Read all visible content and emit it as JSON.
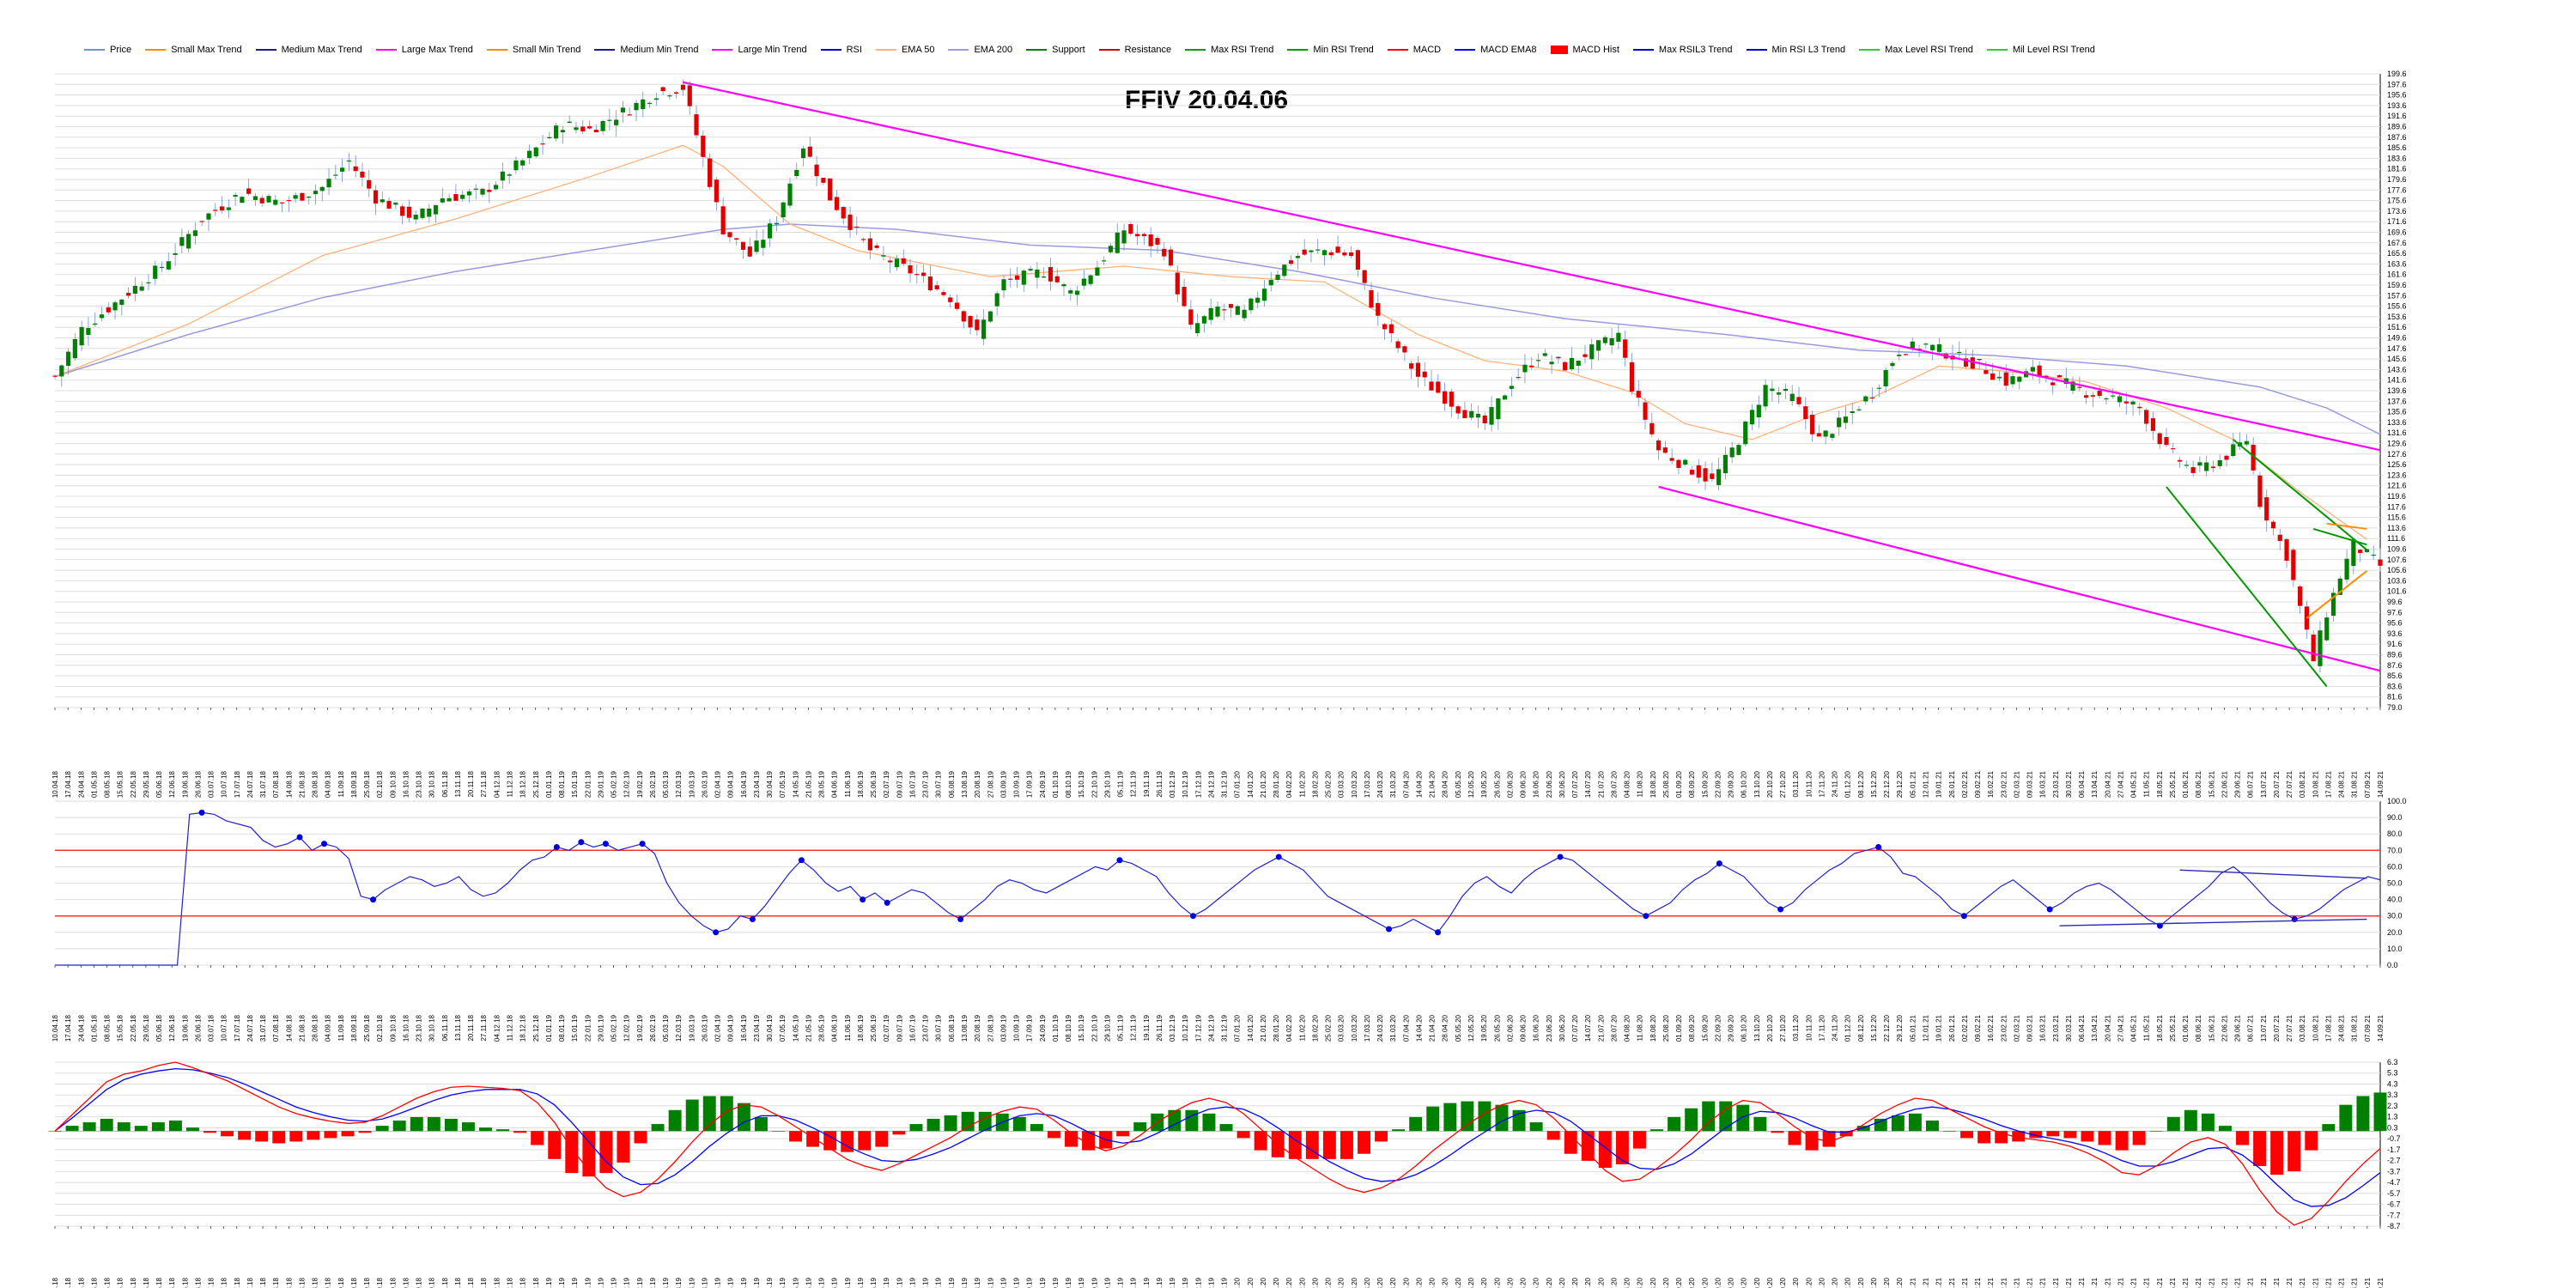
{
  "legend": [
    {
      "label": "Price",
      "color": "#6f8fd6",
      "kind": "line"
    },
    {
      "label": "Small Max Trend",
      "color": "#ff8c00",
      "kind": "line"
    },
    {
      "label": "Medium Max Trend",
      "color": "#1b1b99",
      "kind": "line"
    },
    {
      "label": "Large Max Trend",
      "color": "#ff00ff",
      "kind": "line"
    },
    {
      "label": "Small Min Trend",
      "color": "#ff8c00",
      "kind": "line"
    },
    {
      "label": "Medium Min Trend",
      "color": "#1b1b99",
      "kind": "line"
    },
    {
      "label": "Large Min Trend",
      "color": "#ff00ff",
      "kind": "line"
    },
    {
      "label": "RSI",
      "color": "#0000cc",
      "kind": "line"
    },
    {
      "label": "EMA 50",
      "color": "#ffb27a",
      "kind": "line"
    },
    {
      "label": "EMA 200",
      "color": "#9a9ae0",
      "kind": "line"
    },
    {
      "label": "Support",
      "color": "#008000",
      "kind": "line"
    },
    {
      "label": "Resistance",
      "color": "#cc0000",
      "kind": "line"
    },
    {
      "label": "Max RSI Trend",
      "color": "#009900",
      "kind": "line"
    },
    {
      "label": "Min RSI Trend",
      "color": "#009900",
      "kind": "line"
    },
    {
      "label": "MACD",
      "color": "#ff0000",
      "kind": "line"
    },
    {
      "label": "MACD EMA8",
      "color": "#0000ff",
      "kind": "line"
    },
    {
      "label": "MACD Hist",
      "color": "#ff0000",
      "kind": "bar"
    },
    {
      "label": "Max RSIL3 Trend",
      "color": "#0000cc",
      "kind": "line"
    },
    {
      "label": "Min RSI L3 Trend",
      "color": "#0000cc",
      "kind": "line"
    },
    {
      "label": "Max Level RSI Trend",
      "color": "#33cc33",
      "kind": "line"
    },
    {
      "label": "Mil Level RSI Trend",
      "color": "#33cc33",
      "kind": "line"
    }
  ],
  "title": "FFIV 20.04.06",
  "colors": {
    "up": "#008000",
    "down": "#e00000",
    "ema50": "#ffb27a",
    "ema200": "#9a9ae0",
    "large_trend": "#ff00ff",
    "support": "#009900",
    "small_trend": "#ff8c00",
    "rsi": "#2222cc",
    "rsi_level": "#ff3333",
    "macd": "#ff0000",
    "signal": "#0000ff",
    "hist_pos": "#008000",
    "hist_neg": "#ff0000",
    "grid": "#dddddd"
  },
  "chart_data": [
    {
      "type": "candlestick",
      "title": "FFIV 20.04.06",
      "ylim": [
        79.0,
        199.6
      ],
      "grid": true,
      "y_tick_labels": [
        "199.6",
        "197.6",
        "195.6",
        "193.6",
        "191.6",
        "189.6",
        "187.6",
        "185.6",
        "183.6",
        "181.6",
        "179.6",
        "177.6",
        "175.6",
        "173.6",
        "171.6",
        "169.6",
        "167.6",
        "165.6",
        "163.6",
        "161.6",
        "159.6",
        "157.6",
        "155.6",
        "153.6",
        "151.6",
        "149.6",
        "147.6",
        "145.6",
        "143.6",
        "141.6",
        "139.6",
        "137.6",
        "135.6",
        "133.6",
        "131.6",
        "129.6",
        "127.6",
        "125.6",
        "123.6",
        "121.6",
        "119.6",
        "117.6",
        "115.6",
        "113.6",
        "111.6",
        "109.6",
        "107.6",
        "105.6",
        "103.6",
        "101.6",
        "99.6",
        "97.6",
        "95.6",
        "93.6",
        "91.6",
        "89.6",
        "87.6",
        "85.6",
        "83.6",
        "81.6",
        "79.0"
      ],
      "price_path": [
        [
          0,
          142
        ],
        [
          4,
          151
        ],
        [
          10,
          157
        ],
        [
          16,
          163
        ],
        [
          22,
          172
        ],
        [
          28,
          177
        ],
        [
          34,
          175
        ],
        [
          40,
          178
        ],
        [
          44,
          183
        ],
        [
          48,
          176
        ],
        [
          54,
          172
        ],
        [
          58,
          176
        ],
        [
          64,
          177
        ],
        [
          70,
          183
        ],
        [
          76,
          190
        ],
        [
          80,
          189
        ],
        [
          86,
          193
        ],
        [
          90,
          196
        ],
        [
          94,
          197
        ],
        [
          96,
          188
        ],
        [
          100,
          170
        ],
        [
          104,
          165
        ],
        [
          108,
          172
        ],
        [
          112,
          186
        ],
        [
          116,
          176
        ],
        [
          122,
          166
        ],
        [
          128,
          162
        ],
        [
          134,
          157
        ],
        [
          138,
          150
        ],
        [
          142,
          160
        ],
        [
          148,
          162
        ],
        [
          152,
          158
        ],
        [
          156,
          163
        ],
        [
          160,
          170
        ],
        [
          166,
          166
        ],
        [
          170,
          151
        ],
        [
          174,
          155
        ],
        [
          178,
          154
        ],
        [
          182,
          161
        ],
        [
          186,
          165
        ],
        [
          190,
          166
        ],
        [
          194,
          165
        ],
        [
          198,
          153
        ],
        [
          204,
          142
        ],
        [
          210,
          136
        ],
        [
          214,
          133
        ],
        [
          218,
          141
        ],
        [
          222,
          146
        ],
        [
          226,
          144
        ],
        [
          230,
          147
        ],
        [
          234,
          150
        ],
        [
          236,
          140
        ],
        [
          240,
          128
        ],
        [
          244,
          125
        ],
        [
          248,
          122
        ],
        [
          252,
          130
        ],
        [
          256,
          140
        ],
        [
          260,
          138
        ],
        [
          264,
          130
        ],
        [
          268,
          134
        ],
        [
          272,
          139
        ],
        [
          276,
          147
        ],
        [
          280,
          148
        ],
        [
          284,
          146
        ],
        [
          288,
          144
        ],
        [
          292,
          141
        ],
        [
          296,
          143
        ],
        [
          300,
          141
        ],
        [
          304,
          139
        ],
        [
          308,
          138
        ],
        [
          312,
          136
        ],
        [
          316,
          128
        ],
        [
          320,
          124
        ],
        [
          324,
          126
        ],
        [
          328,
          130
        ],
        [
          330,
          118
        ],
        [
          334,
          108
        ],
        [
          336,
          98
        ],
        [
          338,
          88
        ],
        [
          340,
          97
        ],
        [
          342,
          104
        ],
        [
          344,
          110
        ],
        [
          346,
          108
        ],
        [
          348,
          106
        ]
      ],
      "ema50_path": [
        [
          0,
          142
        ],
        [
          20,
          152
        ],
        [
          40,
          165
        ],
        [
          60,
          172
        ],
        [
          80,
          180
        ],
        [
          94,
          186
        ],
        [
          100,
          182
        ],
        [
          110,
          171
        ],
        [
          120,
          166
        ],
        [
          140,
          161
        ],
        [
          160,
          163
        ],
        [
          176,
          161
        ],
        [
          190,
          160
        ],
        [
          204,
          150
        ],
        [
          214,
          145
        ],
        [
          226,
          143
        ],
        [
          236,
          139
        ],
        [
          244,
          133
        ],
        [
          254,
          130
        ],
        [
          264,
          135
        ],
        [
          272,
          138
        ],
        [
          282,
          144
        ],
        [
          292,
          143
        ],
        [
          304,
          141
        ],
        [
          316,
          136
        ],
        [
          326,
          130
        ],
        [
          336,
          120
        ],
        [
          346,
          111
        ]
      ],
      "ema200_path": [
        [
          0,
          142
        ],
        [
          20,
          150
        ],
        [
          40,
          157
        ],
        [
          60,
          162
        ],
        [
          80,
          166
        ],
        [
          100,
          170
        ],
        [
          110,
          171
        ],
        [
          126,
          170
        ],
        [
          146,
          167
        ],
        [
          166,
          166
        ],
        [
          186,
          162
        ],
        [
          206,
          157
        ],
        [
          226,
          153
        ],
        [
          250,
          150
        ],
        [
          270,
          147
        ],
        [
          290,
          146
        ],
        [
          310,
          144
        ],
        [
          330,
          140
        ],
        [
          340,
          136
        ],
        [
          348,
          131
        ]
      ],
      "large_max_trend": [
        [
          94,
          198
        ],
        [
          348,
          128
        ]
      ],
      "large_min_trend": [
        [
          240,
          121
        ],
        [
          348,
          86
        ]
      ],
      "support_lines": [
        [
          [
            316,
            121
          ],
          [
            340,
            83
          ]
        ],
        [
          [
            326,
            130
          ],
          [
            346,
            109
          ]
        ],
        [
          [
            338,
            113
          ],
          [
            346,
            110
          ]
        ]
      ],
      "small_trend_lines": [
        [
          [
            337,
            96
          ],
          [
            346,
            105
          ]
        ],
        [
          [
            340,
            114
          ],
          [
            346,
            113
          ]
        ]
      ]
    },
    {
      "type": "line",
      "title": "RSI",
      "ylim": [
        0,
        100
      ],
      "y_tick_labels": [
        "100.0",
        "90.0",
        "80.0",
        "70.0",
        "60.0",
        "50.0",
        "40.0",
        "30.0",
        "20.0",
        "10.0",
        "0.0"
      ],
      "levels": [
        70,
        30
      ],
      "values": [
        0,
        0,
        0,
        0,
        0,
        0,
        0,
        0,
        0,
        0,
        0,
        92,
        93,
        92,
        88,
        86,
        84,
        76,
        72,
        74,
        78,
        70,
        74,
        72,
        65,
        42,
        40,
        46,
        50,
        54,
        52,
        48,
        50,
        54,
        46,
        42,
        44,
        50,
        58,
        64,
        66,
        72,
        70,
        75,
        72,
        74,
        70,
        72,
        74,
        68,
        50,
        38,
        30,
        24,
        20,
        22,
        30,
        28,
        36,
        46,
        56,
        64,
        58,
        50,
        45,
        48,
        40,
        44,
        38,
        42,
        46,
        44,
        38,
        32,
        28,
        34,
        40,
        48,
        52,
        50,
        46,
        44,
        48,
        52,
        56,
        60,
        58,
        64,
        62,
        58,
        54,
        44,
        36,
        30,
        34,
        40,
        46,
        52,
        58,
        62,
        66,
        62,
        58,
        50,
        42,
        38,
        34,
        30,
        26,
        22,
        24,
        28,
        24,
        20,
        30,
        42,
        50,
        54,
        48,
        44,
        52,
        58,
        62,
        66,
        64,
        58,
        52,
        46,
        40,
        34,
        30,
        34,
        38,
        46,
        52,
        56,
        62,
        58,
        54,
        46,
        38,
        34,
        38,
        46,
        52,
        58,
        62,
        68,
        70,
        72,
        66,
        56,
        54,
        48,
        42,
        34,
        30,
        36,
        42,
        48,
        52,
        46,
        40,
        34,
        38,
        44,
        48,
        50,
        46,
        40,
        34,
        28,
        24,
        30,
        36,
        42,
        48,
        56,
        60,
        54,
        46,
        38,
        32,
        28,
        30,
        34,
        40,
        46,
        50,
        54,
        52
      ],
      "max_rsi_trend": [
        [
          318,
          58
        ],
        [
          346,
          53
        ]
      ],
      "min_rsi_trend": [
        [
          300,
          24
        ],
        [
          346,
          28
        ]
      ]
    },
    {
      "type": "line",
      "title": "MACD",
      "ylim": [
        -8.7,
        6.3
      ],
      "y_tick_labels": [
        "6.3",
        "5.3",
        "4.3",
        "3.3",
        "2.3",
        "1.3",
        "0.3",
        "-0.7",
        "-1.7",
        "-2.7",
        "-3.7",
        "-4.7",
        "-5.7",
        "-6.7",
        "-7.7",
        "-8.7"
      ],
      "macd": [
        0,
        1.5,
        3.0,
        4.5,
        5.2,
        5.5,
        6.0,
        6.3,
        5.8,
        5.2,
        4.6,
        3.8,
        3.0,
        2.2,
        1.6,
        1.2,
        0.9,
        0.7,
        0.8,
        1.4,
        2.2,
        3.0,
        3.6,
        4.0,
        4.1,
        4.0,
        3.9,
        3.7,
        2.6,
        0.8,
        -1.6,
        -3.6,
        -5.2,
        -6.0,
        -5.6,
        -4.4,
        -2.8,
        -1.0,
        0.6,
        1.8,
        2.4,
        2.2,
        1.4,
        0.4,
        -0.6,
        -1.6,
        -2.6,
        -3.2,
        -3.6,
        -3.0,
        -2.2,
        -1.4,
        -0.6,
        0.4,
        1.2,
        1.8,
        2.2,
        2.0,
        1.0,
        -0.2,
        -1.2,
        -1.8,
        -1.4,
        -0.4,
        0.8,
        1.8,
        2.6,
        3.0,
        2.6,
        1.6,
        0.2,
        -1.2,
        -2.4,
        -3.4,
        -4.4,
        -5.2,
        -5.6,
        -5.2,
        -4.4,
        -3.2,
        -1.8,
        -0.6,
        0.6,
        1.6,
        2.4,
        2.8,
        2.4,
        1.2,
        -0.4,
        -2.0,
        -3.6,
        -4.6,
        -4.4,
        -3.4,
        -2.2,
        -0.8,
        0.8,
        2.0,
        2.8,
        2.6,
        1.6,
        0.4,
        -0.6,
        -1.0,
        -0.4,
        0.6,
        1.6,
        2.4,
        3.0,
        2.8,
        2.0,
        1.2,
        0.4,
        -0.2,
        -0.6,
        -0.8,
        -1.0,
        -1.4,
        -2.0,
        -2.8,
        -3.8,
        -4.0,
        -3.2,
        -2.0,
        -1.0,
        -0.6,
        -1.2,
        -3.0,
        -5.4,
        -7.4,
        -8.6,
        -8.0,
        -6.4,
        -4.6,
        -3.0,
        -1.6
      ],
      "signal": [
        0,
        1.2,
        2.5,
        3.8,
        4.7,
        5.2,
        5.5,
        5.7,
        5.6,
        5.3,
        4.9,
        4.3,
        3.6,
        2.9,
        2.2,
        1.7,
        1.3,
        1.0,
        0.9,
        1.1,
        1.6,
        2.2,
        2.8,
        3.3,
        3.6,
        3.8,
        3.8,
        3.8,
        3.4,
        2.4,
        0.8,
        -1.0,
        -2.8,
        -4.2,
        -4.9,
        -4.8,
        -4.0,
        -2.8,
        -1.4,
        -0.2,
        0.8,
        1.4,
        1.4,
        1.0,
        0.3,
        -0.5,
        -1.4,
        -2.1,
        -2.7,
        -2.8,
        -2.6,
        -2.1,
        -1.5,
        -0.7,
        0.1,
        0.8,
        1.4,
        1.6,
        1.4,
        0.7,
        -0.1,
        -0.8,
        -1.1,
        -0.9,
        -0.2,
        0.6,
        1.4,
        2.0,
        2.2,
        2.0,
        1.3,
        0.3,
        -0.8,
        -1.8,
        -2.8,
        -3.6,
        -4.3,
        -4.6,
        -4.5,
        -4.0,
        -3.2,
        -2.2,
        -1.1,
        -0.1,
        0.9,
        1.6,
        1.9,
        1.7,
        0.9,
        -0.3,
        -1.5,
        -2.7,
        -3.4,
        -3.5,
        -3.0,
        -2.1,
        -0.9,
        0.3,
        1.3,
        1.8,
        1.7,
        1.2,
        0.5,
        -0.1,
        -0.1,
        0.3,
        0.9,
        1.5,
        2.0,
        2.2,
        2.0,
        1.6,
        1.1,
        0.5,
        0.0,
        -0.4,
        -0.7,
        -1.0,
        -1.4,
        -2.0,
        -2.7,
        -3.2,
        -3.2,
        -2.8,
        -2.2,
        -1.6,
        -1.5,
        -2.2,
        -3.4,
        -4.9,
        -6.3,
        -6.9,
        -6.8,
        -6.1,
        -5.0,
        -3.8
      ]
    }
  ]
}
